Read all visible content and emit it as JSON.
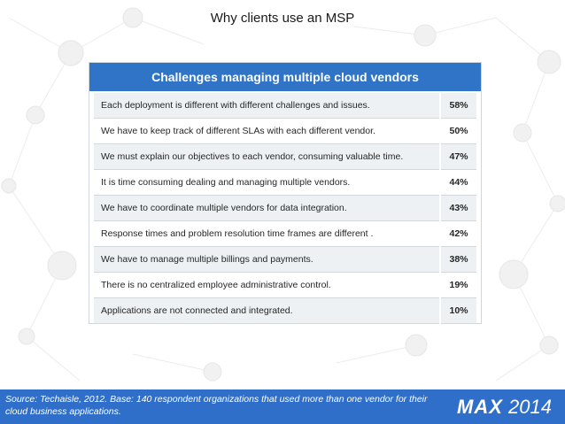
{
  "slide": {
    "title": "Why clients use an MSP",
    "source": "Source: Techaisle, 2012. Base: 140 respondent organizations that used more than one vendor for their cloud business applications.",
    "logo": {
      "mark": "MAX",
      "year": "2014"
    }
  },
  "chart_data": {
    "type": "table",
    "title": "Challenges managing multiple cloud vendors",
    "rows": [
      {
        "label": "Each deployment is different with different challenges and issues.",
        "value": "58%"
      },
      {
        "label": "We have to keep track of different SLAs with each different vendor.",
        "value": "50%"
      },
      {
        "label": "We must explain our objectives to each vendor, consuming valuable time.",
        "value": "47%"
      },
      {
        "label": "It is time consuming dealing and managing multiple vendors.",
        "value": "44%"
      },
      {
        "label": "We have to coordinate multiple vendors for data integration.",
        "value": "43%"
      },
      {
        "label": "Response times and problem resolution time frames are different .",
        "value": "42%"
      },
      {
        "label": "We have to manage multiple billings and payments.",
        "value": "38%"
      },
      {
        "label": "There is no centralized employee administrative control.",
        "value": "19%"
      },
      {
        "label": "Applications are not connected and integrated.",
        "value": "10%"
      }
    ]
  },
  "colors": {
    "header": "#2f74c6",
    "footer": "#2f6fc9",
    "alt_row": "#eef1f3",
    "pattern": "#ececec"
  }
}
